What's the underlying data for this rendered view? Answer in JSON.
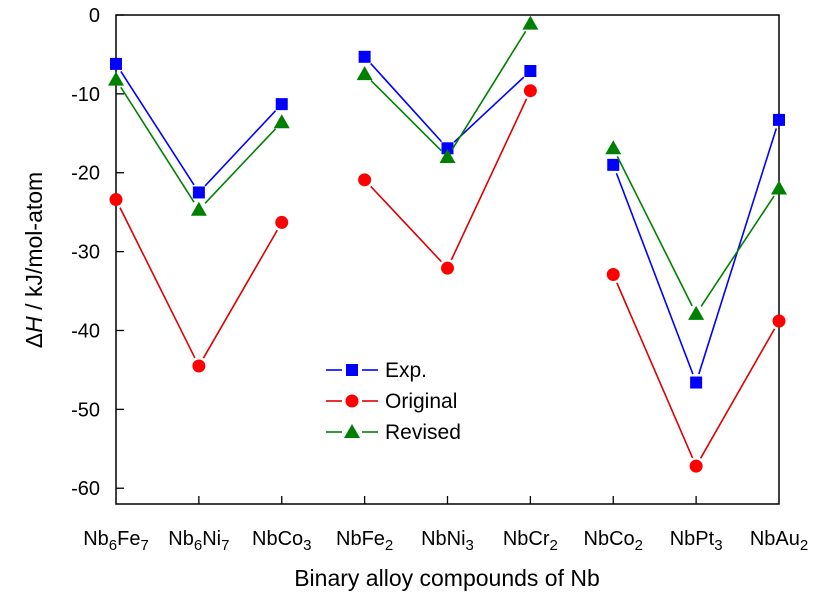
{
  "chart_data": {
    "type": "line",
    "title": "",
    "xlabel": "Binary alloy compounds of Nb",
    "ylabel_symbol": "Δ",
    "ylabel_var": "H",
    "ylabel_unit": " / kJ/mol-atom",
    "ylim": [
      -62,
      0
    ],
    "yticks": [
      0,
      -10,
      -20,
      -30,
      -40,
      -50,
      -60
    ],
    "categories": [
      "Nb6Fe7",
      "Nb6Ni7",
      "NbCo3",
      "NbFe2",
      "NbNi3",
      "NbCr2",
      "NbCo2",
      "NbPt3",
      "NbAu2"
    ],
    "groups": [
      [
        0,
        1,
        2
      ],
      [
        3,
        4,
        5
      ],
      [
        6,
        7,
        8
      ]
    ],
    "legend_position": "center-left",
    "grid": false,
    "series": [
      {
        "name": "Exp.",
        "color": "#0000ff",
        "marker": "square",
        "values": [
          -6.2,
          -22.5,
          -11.3,
          -5.3,
          -16.9,
          -7.1,
          -19.0,
          -46.6,
          -13.3
        ]
      },
      {
        "name": "Original",
        "color": "#ff0000",
        "line_color": "#dd0000",
        "marker": "circle",
        "values": [
          -23.4,
          -44.5,
          -26.3,
          -20.9,
          -32.1,
          -9.6,
          -32.9,
          -57.2,
          -38.8
        ]
      },
      {
        "name": "Revised",
        "color": "#008000",
        "marker": "triangle",
        "values": [
          -8.2,
          -24.7,
          -13.6,
          -7.5,
          -18.0,
          -1.1,
          -16.9,
          -37.9,
          -22.0
        ]
      }
    ]
  }
}
